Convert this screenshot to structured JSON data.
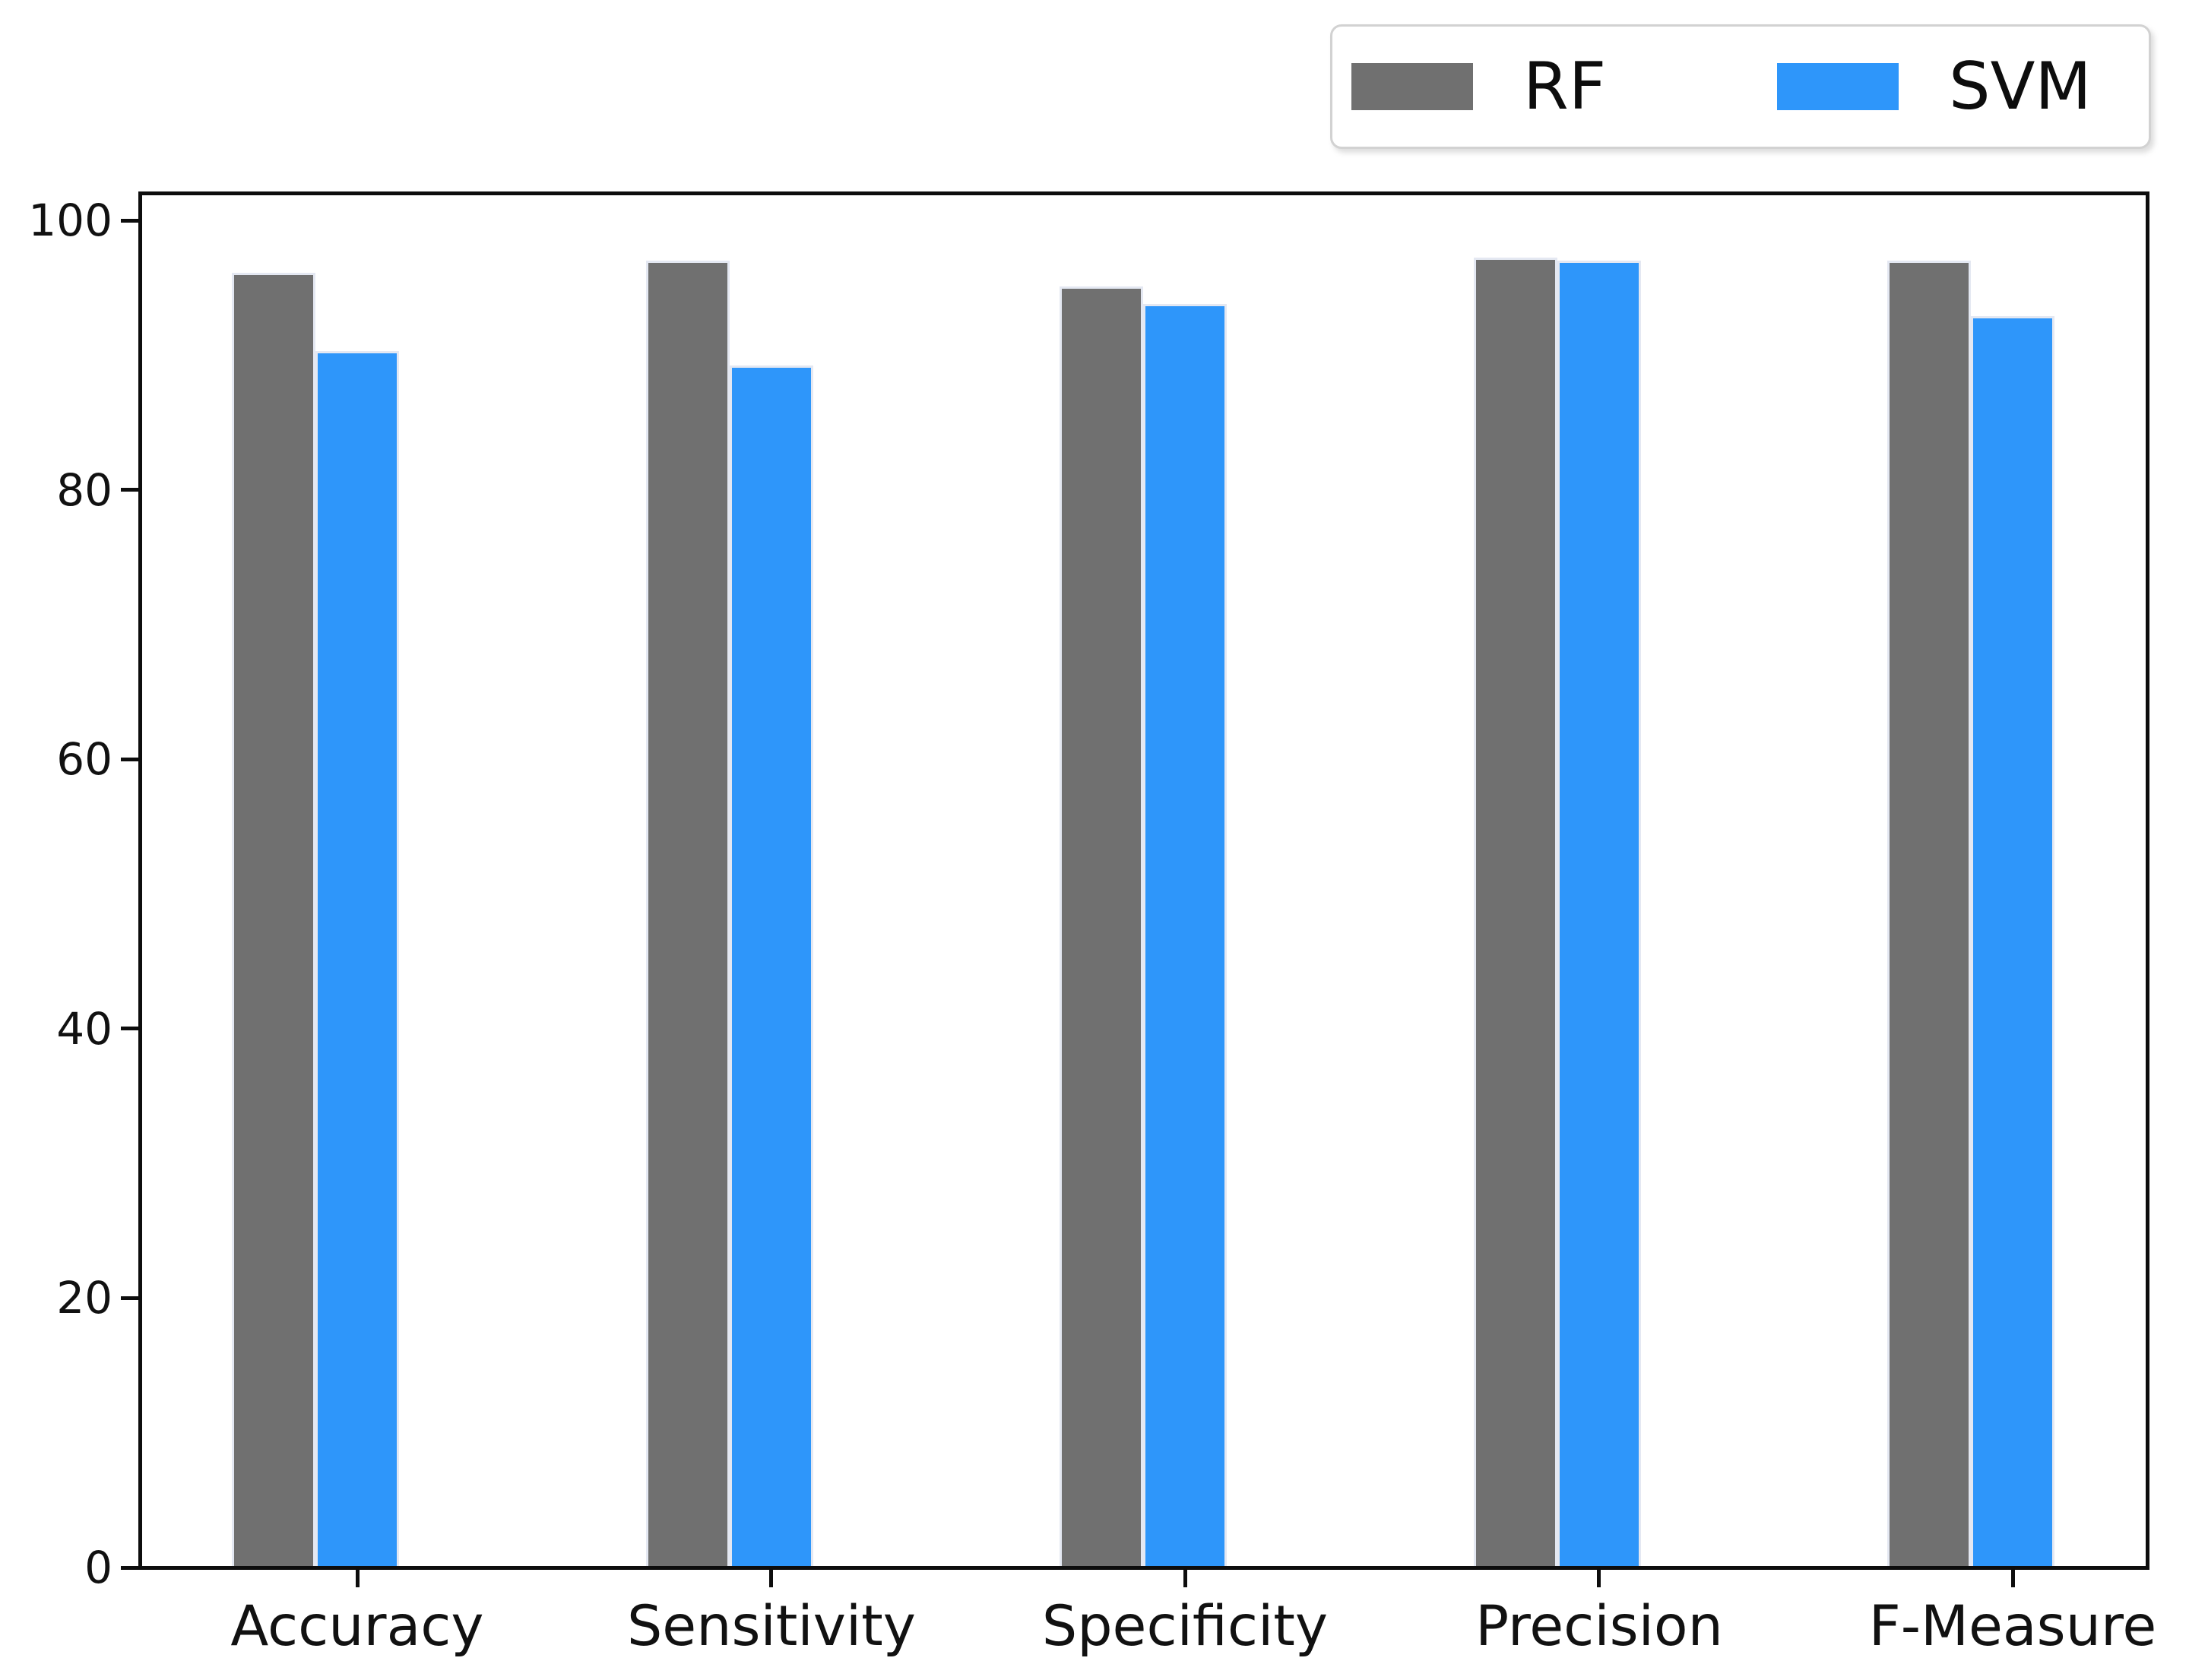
{
  "chart_data": {
    "type": "bar",
    "title": "",
    "xlabel": "",
    "ylabel": "",
    "categories": [
      "Accuracy",
      "Sensitivity",
      "Specificity",
      "Precision",
      "F-Measure"
    ],
    "series": [
      {
        "name": "RF",
        "color": "#707070",
        "values": [
          96.0,
          96.9,
          95.0,
          97.1,
          96.9
        ]
      },
      {
        "name": "SVM",
        "color": "#2e96fa",
        "values": [
          90.2,
          89.1,
          93.7,
          96.9,
          92.8
        ]
      }
    ],
    "y_ticks": [
      0,
      20,
      40,
      60,
      80,
      100
    ],
    "ylim": [
      0,
      102
    ],
    "grid": false,
    "legend_position": "top-right-outside",
    "bar_edge_color": "#e4e8f2",
    "spine_color": "#0d0d0d",
    "tick_label_color": "#111111"
  }
}
